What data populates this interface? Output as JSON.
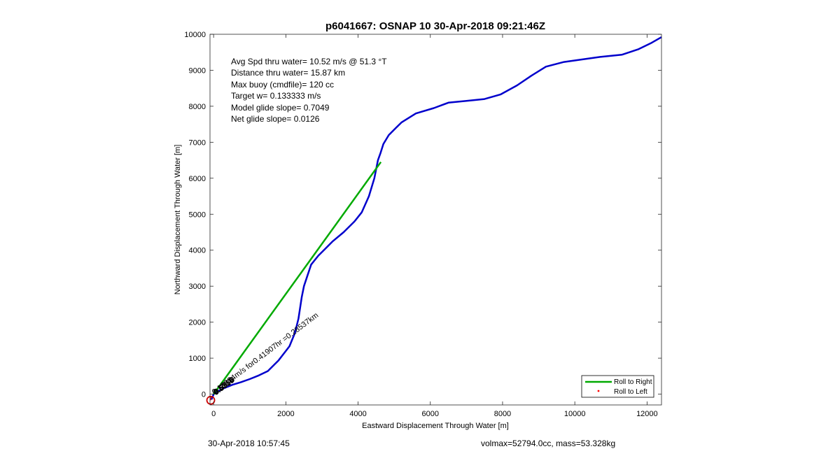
{
  "chart_data": {
    "type": "line",
    "title": "p6041667: OSNAP 10 30-Apr-2018 09:21:46Z",
    "xlabel": "Eastward Displacement Through Water [m]",
    "ylabel": "Northward Displacement Through Water [m]",
    "xlim": [
      -100,
      12400
    ],
    "ylim": [
      -300,
      10000
    ],
    "xticks": [
      0,
      2000,
      4000,
      6000,
      8000,
      10000,
      12000
    ],
    "yticks": [
      0,
      1000,
      2000,
      3000,
      4000,
      5000,
      6000,
      7000,
      8000,
      9000,
      10000
    ],
    "grid": false,
    "legend_position": "bottom-right",
    "legend": [
      {
        "label": "Roll to Right",
        "color": "#00aa00",
        "style": "line"
      },
      {
        "label": "Roll to Left",
        "color": "#ff0000",
        "style": "dot"
      }
    ],
    "series": [
      {
        "color": "#0000cc",
        "x": [
          -60,
          0,
          120,
          300,
          520,
          750,
          1000,
          1250,
          1500,
          1800,
          2100,
          2250,
          2350,
          2440,
          2500,
          2600,
          2700,
          2900,
          3100,
          3300,
          3600,
          3900,
          4100,
          4300,
          4450,
          4550,
          4620,
          4700,
          4850,
          5050,
          5200,
          5600,
          6100,
          6500,
          7000,
          7500,
          7950,
          8400,
          8800,
          9200,
          9700,
          10200,
          10700,
          11300,
          11750,
          12100,
          12400
        ],
        "y": [
          -150,
          0,
          80,
          170,
          260,
          330,
          420,
          520,
          640,
          940,
          1330,
          1700,
          2100,
          2700,
          3000,
          3300,
          3600,
          3850,
          4050,
          4250,
          4500,
          4800,
          5050,
          5500,
          6000,
          6500,
          6700,
          6950,
          7200,
          7400,
          7550,
          7800,
          7950,
          8100,
          8150,
          8200,
          8330,
          8580,
          8850,
          9100,
          9230,
          9300,
          9370,
          9430,
          9580,
          9750,
          9920
        ]
      },
      {
        "color": "#00aa00",
        "x": [
          0,
          4630
        ],
        "y": [
          0,
          6450
        ]
      }
    ],
    "annotations": [
      "Avg Spd thru water= 10.52 m/s @  51.3 °T",
      "Distance thru water= 15.87 km",
      "Max buoy (cmdfile)= 120 cc",
      "Target w= 0.133333 m/s",
      "Model glide slope= 0.7049",
      "Net glide slope= 0.0126"
    ],
    "rotated_labels": [
      {
        "text": "0.18924m/s for0.41907hr =0.28537km",
        "x": 20,
        "y": -20
      },
      {
        "text": "0.5518",
        "x": 50,
        "y": -20
      },
      {
        "text": "0.5719",
        "x": 60,
        "y": -40
      },
      {
        "text": "0.6355",
        "x": 70,
        "y": -30
      },
      {
        "text": "0.5670",
        "x": 80,
        "y": -10
      }
    ],
    "start_marker": {
      "x": -80,
      "y": -170,
      "color": "#cc0000"
    }
  },
  "footer": {
    "left": "30-Apr-2018 10:57:45",
    "right": "volmax=52794.0cc, mass=53.328kg"
  }
}
